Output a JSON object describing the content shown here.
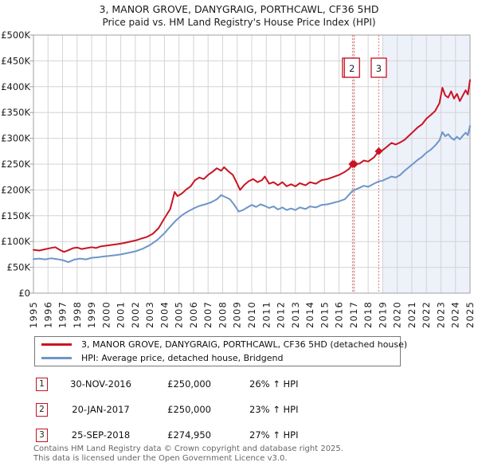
{
  "header": {
    "title": "3, MANOR GROVE, DANYGRAIG, PORTHCAWL, CF36 5HD",
    "subtitle": "Price paid vs. HM Land Registry's House Price Index (HPI)"
  },
  "colors": {
    "property_line": "#c81423",
    "hpi_line": "#6d96c8",
    "sale_dashed_line": "#e57575",
    "grid": "#d4d4d4",
    "plot_border": "#a0a0a0",
    "forecast_shade": "#edf1fa",
    "marker_box_border": "#c21422",
    "tick_text": "#1a1a1a"
  },
  "chart_data": {
    "type": "line",
    "title": "3, MANOR GROVE, DANYGRAIG, PORTHCAWL, CF36 5HD — Price paid vs. HM Land Registry's House Price Index (HPI)",
    "xlabel": "",
    "ylabel": "",
    "xlim": [
      1995,
      2025
    ],
    "ylim": [
      0,
      500000
    ],
    "grid": true,
    "legend_position": "bottom",
    "x_ticks": [
      1995,
      1996,
      1997,
      1998,
      1999,
      2000,
      2001,
      2002,
      2003,
      2004,
      2005,
      2006,
      2007,
      2008,
      2009,
      2010,
      2011,
      2012,
      2013,
      2014,
      2015,
      2016,
      2017,
      2018,
      2019,
      2020,
      2021,
      2022,
      2023,
      2024,
      2025
    ],
    "y_ticks": [
      {
        "value": 0,
        "label": "£0"
      },
      {
        "value": 50000,
        "label": "£50K"
      },
      {
        "value": 100000,
        "label": "£100K"
      },
      {
        "value": 150000,
        "label": "£150K"
      },
      {
        "value": 200000,
        "label": "£200K"
      },
      {
        "value": 250000,
        "label": "£250K"
      },
      {
        "value": 300000,
        "label": "£300K"
      },
      {
        "value": 350000,
        "label": "£350K"
      },
      {
        "value": 400000,
        "label": "£400K"
      },
      {
        "value": 450000,
        "label": "£450K"
      },
      {
        "value": 500000,
        "label": "£500K"
      }
    ],
    "shaded_region": {
      "from_year": 2019,
      "to_year": 2025
    },
    "sale_markers": [
      {
        "label": "1",
        "year": 2016.92,
        "price": 250000
      },
      {
        "label": "2",
        "year": 2017.05,
        "price": 250000
      },
      {
        "label": "3",
        "year": 2018.73,
        "price": 274950
      }
    ],
    "series": [
      {
        "name": "3, MANOR GROVE, DANYGRAIG, PORTHCAWL, CF36 5HD (detached house)",
        "color": "#c81423",
        "points": [
          [
            1995.0,
            84000
          ],
          [
            1995.4,
            82500
          ],
          [
            1995.8,
            85000
          ],
          [
            1996.2,
            87500
          ],
          [
            1996.5,
            89000
          ],
          [
            1996.8,
            84000
          ],
          [
            1997.1,
            80000
          ],
          [
            1997.4,
            83000
          ],
          [
            1997.7,
            87000
          ],
          [
            1998.0,
            88500
          ],
          [
            1998.3,
            85500
          ],
          [
            1998.6,
            87000
          ],
          [
            1999.0,
            89000
          ],
          [
            1999.3,
            87500
          ],
          [
            1999.6,
            90500
          ],
          [
            2000.0,
            92000
          ],
          [
            2000.4,
            93500
          ],
          [
            2000.8,
            95000
          ],
          [
            2001.2,
            97000
          ],
          [
            2001.6,
            99500
          ],
          [
            2002.0,
            102000
          ],
          [
            2002.4,
            105500
          ],
          [
            2002.8,
            109000
          ],
          [
            2003.2,
            115000
          ],
          [
            2003.6,
            126000
          ],
          [
            2004.0,
            145000
          ],
          [
            2004.4,
            163000
          ],
          [
            2004.7,
            196000
          ],
          [
            2004.9,
            188000
          ],
          [
            2005.2,
            193000
          ],
          [
            2005.5,
            201000
          ],
          [
            2005.8,
            207000
          ],
          [
            2006.1,
            219000
          ],
          [
            2006.4,
            224000
          ],
          [
            2006.7,
            221000
          ],
          [
            2007.0,
            229000
          ],
          [
            2007.3,
            235000
          ],
          [
            2007.6,
            242000
          ],
          [
            2007.9,
            237000
          ],
          [
            2008.1,
            244000
          ],
          [
            2008.4,
            236000
          ],
          [
            2008.7,
            229000
          ],
          [
            2009.0,
            212000
          ],
          [
            2009.2,
            200000
          ],
          [
            2009.5,
            210000
          ],
          [
            2009.8,
            217000
          ],
          [
            2010.1,
            221000
          ],
          [
            2010.4,
            215000
          ],
          [
            2010.7,
            219000
          ],
          [
            2010.9,
            226000
          ],
          [
            2011.2,
            212000
          ],
          [
            2011.5,
            215000
          ],
          [
            2011.8,
            209000
          ],
          [
            2012.1,
            215000
          ],
          [
            2012.4,
            207000
          ],
          [
            2012.7,
            211000
          ],
          [
            2013.0,
            207000
          ],
          [
            2013.3,
            213000
          ],
          [
            2013.7,
            209000
          ],
          [
            2014.0,
            215000
          ],
          [
            2014.4,
            212000
          ],
          [
            2014.8,
            219000
          ],
          [
            2015.2,
            221000
          ],
          [
            2015.6,
            225000
          ],
          [
            2016.0,
            229000
          ],
          [
            2016.4,
            235000
          ],
          [
            2016.7,
            241000
          ],
          [
            2016.92,
            250000
          ],
          [
            2017.05,
            250000
          ],
          [
            2017.4,
            251000
          ],
          [
            2017.7,
            257000
          ],
          [
            2018.0,
            255000
          ],
          [
            2018.4,
            263000
          ],
          [
            2018.73,
            274950
          ],
          [
            2019.0,
            277000
          ],
          [
            2019.3,
            284000
          ],
          [
            2019.6,
            291000
          ],
          [
            2019.9,
            288000
          ],
          [
            2020.2,
            292000
          ],
          [
            2020.5,
            297000
          ],
          [
            2020.8,
            305000
          ],
          [
            2021.1,
            313000
          ],
          [
            2021.4,
            321000
          ],
          [
            2021.7,
            327000
          ],
          [
            2022.0,
            338000
          ],
          [
            2022.3,
            345000
          ],
          [
            2022.6,
            353000
          ],
          [
            2022.9,
            368000
          ],
          [
            2023.1,
            398000
          ],
          [
            2023.3,
            383000
          ],
          [
            2023.5,
            379000
          ],
          [
            2023.7,
            391000
          ],
          [
            2023.9,
            377000
          ],
          [
            2024.1,
            386000
          ],
          [
            2024.3,
            372000
          ],
          [
            2024.5,
            383000
          ],
          [
            2024.7,
            393000
          ],
          [
            2024.85,
            385000
          ],
          [
            2025.0,
            413000
          ]
        ]
      },
      {
        "name": "HPI: Average price, detached house, Bridgend",
        "color": "#6d96c8",
        "points": [
          [
            1995.0,
            66000
          ],
          [
            1995.4,
            67000
          ],
          [
            1995.8,
            65500
          ],
          [
            1996.2,
            67500
          ],
          [
            1996.6,
            66000
          ],
          [
            1997.0,
            64000
          ],
          [
            1997.4,
            60000
          ],
          [
            1997.8,
            65000
          ],
          [
            1998.2,
            67000
          ],
          [
            1998.6,
            65500
          ],
          [
            1999.0,
            68500
          ],
          [
            1999.4,
            69500
          ],
          [
            1999.8,
            71000
          ],
          [
            2000.2,
            72000
          ],
          [
            2000.6,
            73500
          ],
          [
            2001.0,
            75000
          ],
          [
            2001.5,
            78000
          ],
          [
            2002.0,
            81000
          ],
          [
            2002.5,
            86000
          ],
          [
            2003.0,
            93000
          ],
          [
            2003.5,
            103000
          ],
          [
            2004.0,
            116000
          ],
          [
            2004.4,
            129000
          ],
          [
            2004.8,
            141000
          ],
          [
            2005.2,
            151000
          ],
          [
            2005.6,
            158000
          ],
          [
            2006.0,
            164000
          ],
          [
            2006.4,
            169000
          ],
          [
            2006.8,
            172000
          ],
          [
            2007.2,
            176000
          ],
          [
            2007.6,
            182000
          ],
          [
            2007.9,
            190000
          ],
          [
            2008.2,
            186000
          ],
          [
            2008.5,
            182000
          ],
          [
            2008.8,
            171000
          ],
          [
            2009.1,
            158000
          ],
          [
            2009.4,
            161000
          ],
          [
            2009.7,
            166000
          ],
          [
            2010.0,
            171000
          ],
          [
            2010.3,
            167000
          ],
          [
            2010.6,
            172000
          ],
          [
            2010.9,
            169000
          ],
          [
            2011.2,
            165000
          ],
          [
            2011.5,
            168000
          ],
          [
            2011.8,
            162000
          ],
          [
            2012.1,
            166000
          ],
          [
            2012.4,
            161000
          ],
          [
            2012.7,
            164000
          ],
          [
            2013.0,
            161000
          ],
          [
            2013.3,
            166000
          ],
          [
            2013.7,
            163000
          ],
          [
            2014.0,
            168000
          ],
          [
            2014.4,
            166000
          ],
          [
            2014.8,
            171000
          ],
          [
            2015.2,
            172000
          ],
          [
            2015.6,
            175000
          ],
          [
            2016.0,
            178000
          ],
          [
            2016.4,
            182000
          ],
          [
            2016.92,
            198000
          ],
          [
            2017.4,
            204000
          ],
          [
            2017.7,
            208000
          ],
          [
            2018.0,
            206000
          ],
          [
            2018.4,
            212000
          ],
          [
            2018.73,
            216500
          ],
          [
            2019.0,
            218000
          ],
          [
            2019.3,
            222000
          ],
          [
            2019.6,
            226000
          ],
          [
            2019.9,
            224000
          ],
          [
            2020.2,
            229000
          ],
          [
            2020.5,
            237000
          ],
          [
            2020.8,
            244000
          ],
          [
            2021.1,
            251000
          ],
          [
            2021.4,
            258000
          ],
          [
            2021.7,
            264000
          ],
          [
            2022.0,
            272000
          ],
          [
            2022.3,
            278000
          ],
          [
            2022.6,
            286000
          ],
          [
            2022.9,
            296000
          ],
          [
            2023.1,
            312000
          ],
          [
            2023.3,
            304000
          ],
          [
            2023.5,
            308000
          ],
          [
            2023.7,
            301000
          ],
          [
            2023.9,
            297000
          ],
          [
            2024.1,
            303000
          ],
          [
            2024.3,
            298000
          ],
          [
            2024.5,
            305000
          ],
          [
            2024.7,
            311000
          ],
          [
            2024.85,
            306000
          ],
          [
            2025.0,
            324000
          ]
        ]
      }
    ]
  },
  "legend": {
    "entries": [
      {
        "label": "3, MANOR GROVE, DANYGRAIG, PORTHCAWL, CF36 5HD (detached house)",
        "color": "#c81423"
      },
      {
        "label": "HPI: Average price, detached house, Bridgend",
        "color": "#6d96c8"
      }
    ]
  },
  "transactions": [
    {
      "num": "1",
      "date": "30-NOV-2016",
      "price": "£250,000",
      "hpi_diff": "26% ↑ HPI"
    },
    {
      "num": "2",
      "date": "20-JAN-2017",
      "price": "£250,000",
      "hpi_diff": "23% ↑ HPI"
    },
    {
      "num": "3",
      "date": "25-SEP-2018",
      "price": "£274,950",
      "hpi_diff": "27% ↑ HPI"
    }
  ],
  "footer": {
    "line1": "Contains HM Land Registry data © Crown copyright and database right 2025.",
    "line2": "This data is licensed under the Open Government Licence v3.0."
  }
}
